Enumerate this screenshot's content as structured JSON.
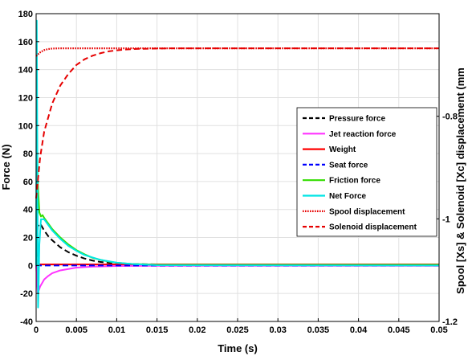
{
  "chart_data": {
    "type": "line",
    "xlabel": "Time (s)",
    "ylabel": "Force (N)",
    "y2label": "Spool [Xs] & Solenoid [Xc] displacement (mm",
    "xlim": [
      0,
      0.05
    ],
    "ylim": [
      -40,
      180
    ],
    "y2lim": [
      -1.2,
      -0.6
    ],
    "x_ticks": [
      0,
      0.005,
      0.01,
      0.015,
      0.02,
      0.025,
      0.03,
      0.035,
      0.04,
      0.045,
      0.05
    ],
    "y_ticks": [
      -40,
      -20,
      0,
      20,
      40,
      60,
      80,
      100,
      120,
      140,
      160,
      180
    ],
    "y2_ticks": [
      -1.2,
      -1,
      -0.8
    ],
    "grid": true,
    "legend_position": "right",
    "series": [
      {
        "name": "Pressure force",
        "axis": "left",
        "color": "#000000",
        "dash": "dashed",
        "x": [
          0,
          0.0002,
          0.0005,
          0.001,
          0.0015,
          0.002,
          0.003,
          0.004,
          0.005,
          0.006,
          0.007,
          0.008,
          0.009,
          0.01,
          0.012,
          0.015,
          0.02,
          0.05
        ],
        "y": [
          0,
          28,
          30,
          25,
          21,
          18,
          13,
          9.5,
          7,
          5,
          3.5,
          2.5,
          2,
          1.5,
          1,
          0.8,
          0.5,
          0.5
        ]
      },
      {
        "name": "Jet reaction force",
        "axis": "left",
        "color": "#ff33ff",
        "dash": "solid",
        "x": [
          0,
          0.0002,
          0.0005,
          0.001,
          0.0015,
          0.002,
          0.003,
          0.004,
          0.005,
          0.007,
          0.01,
          0.015,
          0.05
        ],
        "y": [
          0,
          -20,
          -15,
          -10,
          -7.5,
          -5.5,
          -3.5,
          -2.5,
          -1.5,
          -0.8,
          -0.4,
          -0.2,
          -0.2
        ]
      },
      {
        "name": "Weight",
        "axis": "left",
        "color": "#ff0000",
        "dash": "solid",
        "x": [
          0,
          0.05
        ],
        "y": [
          0.8,
          0.8
        ]
      },
      {
        "name": "Seat force",
        "axis": "left",
        "color": "#0000ff",
        "dash": "dashed",
        "x": [
          0,
          0.05
        ],
        "y": [
          0,
          0
        ]
      },
      {
        "name": "Friction force",
        "axis": "left",
        "color": "#33dd00",
        "dash": "solid",
        "x": [
          0,
          0.0001,
          0.0002,
          0.0004,
          0.0006,
          0.0008,
          0.001,
          0.0015,
          0.002,
          0.003,
          0.004,
          0.005,
          0.006,
          0.007,
          0.008,
          0.009,
          0.01,
          0.011,
          0.012,
          0.013,
          0.014,
          0.015,
          0.02,
          0.05
        ],
        "y": [
          0,
          100,
          60,
          38,
          35,
          36,
          34,
          30,
          26,
          20,
          15,
          11,
          8,
          5.5,
          4,
          2.8,
          2,
          1.5,
          1.1,
          0.9,
          0.7,
          0.5,
          0.5,
          0.5
        ]
      },
      {
        "name": "Net Force",
        "axis": "left",
        "color": "#00e5e5",
        "dash": "solid",
        "x": [
          0,
          8e-05,
          0.00016,
          0.00024,
          0.0003,
          0.0004,
          0.0006,
          0.001,
          0.0015,
          0.002,
          0.003,
          0.004,
          0.005,
          0.006,
          0.008,
          0.01,
          0.012,
          0.015,
          0.05
        ],
        "y": [
          0,
          175,
          60,
          -30,
          -18,
          15,
          33,
          33,
          29,
          25,
          19,
          14,
          10.5,
          7.5,
          4,
          2,
          1,
          0.2,
          0
        ]
      },
      {
        "name": "Spool displacement",
        "axis": "right",
        "color": "#e60000",
        "dash": "dotted",
        "x": [
          0,
          0.0005,
          0.001,
          0.0015,
          0.002,
          0.003,
          0.005,
          0.05
        ],
        "y": [
          -0.6825,
          -0.6755,
          -0.671,
          -0.669,
          -0.668,
          -0.6675,
          -0.6675,
          -0.6675
        ]
      },
      {
        "name": "Solenoid displacement",
        "axis": "right",
        "color": "#e60000",
        "dash": "dashed",
        "x": [
          0,
          0.0005,
          0.001,
          0.002,
          0.003,
          0.004,
          0.005,
          0.006,
          0.007,
          0.008,
          0.009,
          0.01,
          0.011,
          0.012,
          0.013,
          0.015,
          0.017,
          0.02,
          0.05
        ],
        "y": [
          -0.96,
          -0.88,
          -0.83,
          -0.775,
          -0.74,
          -0.7175,
          -0.7,
          -0.689,
          -0.682,
          -0.677,
          -0.6735,
          -0.6715,
          -0.67,
          -0.669,
          -0.6685,
          -0.668,
          -0.6675,
          -0.6675,
          -0.6675
        ]
      }
    ]
  }
}
